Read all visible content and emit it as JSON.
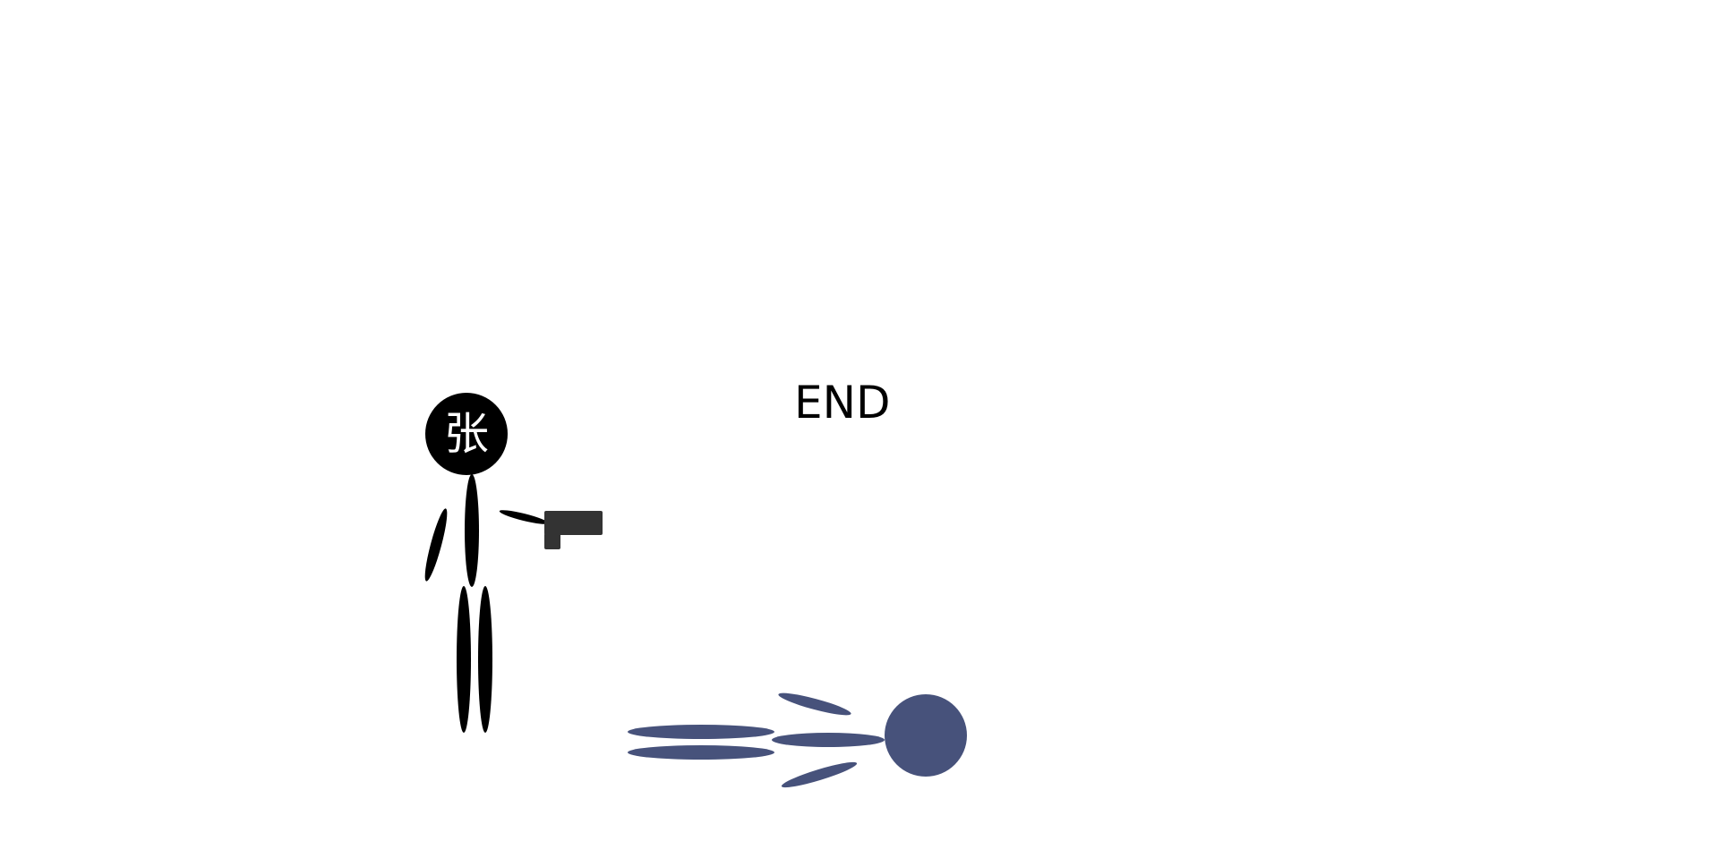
{
  "scene": {
    "end_text": "END",
    "player": {
      "name_glyph": "张",
      "color": "#000000",
      "glyph_color": "#ffffff"
    },
    "enemy": {
      "color": "#47527b"
    },
    "gun_color": "#333333"
  }
}
